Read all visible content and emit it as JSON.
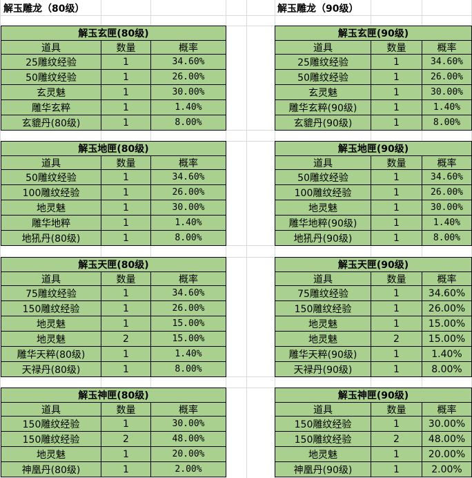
{
  "headings": [
    "解玉雕龙（80级）",
    "解玉雕龙（90级）"
  ],
  "columns": [
    {
      "tables": [
        {
          "title": "解玉玄匣(80级)",
          "header": [
            "道具",
            "数量",
            "概率"
          ],
          "rows": [
            [
              "25雕纹经验",
              1,
              "34.60%"
            ],
            [
              "50雕纹经验",
              1,
              "26.00%"
            ],
            [
              "玄灵魅",
              1,
              "30.00%"
            ],
            [
              "雕华玄粹",
              1,
              "1.40%"
            ],
            [
              "玄貔丹(80级)",
              1,
              "8.00%"
            ]
          ]
        },
        {
          "title": "解玉地匣(80级)",
          "header": [
            "道具",
            "数量",
            "概率"
          ],
          "rows": [
            [
              "50雕纹经验",
              1,
              "34.60%"
            ],
            [
              "100雕纹经验",
              1,
              "26.00%"
            ],
            [
              "地灵魅",
              1,
              "30.00%"
            ],
            [
              "雕华地粹",
              1,
              "1.40%"
            ],
            [
              "地犼丹(80级)",
              1,
              "8.00%"
            ]
          ]
        },
        {
          "title": "解玉天匣(80级)",
          "header": [
            "道具",
            "数量",
            "概率"
          ],
          "rows": [
            [
              "75雕纹经验",
              1,
              "34.60%"
            ],
            [
              "150雕纹经验",
              1,
              "26.00%"
            ],
            [
              "地灵魅",
              1,
              "15.00%"
            ],
            [
              "地灵魅",
              2,
              "15.00%"
            ],
            [
              "雕华天粹(80级)",
              1,
              "1.40%"
            ],
            [
              "天禄丹(80级)",
              1,
              "8.00%"
            ]
          ]
        },
        {
          "title": "解玉神匣(80级)",
          "header": [
            "道具",
            "数量",
            "概率"
          ],
          "rows": [
            [
              "150雕纹经验",
              1,
              "30.00%"
            ],
            [
              "150雕纹经验",
              2,
              "48.00%"
            ],
            [
              "地灵魅",
              1,
              "20.00%"
            ],
            [
              "神凰丹(80级)",
              1,
              "2.00%"
            ]
          ]
        }
      ]
    },
    {
      "tables": [
        {
          "title": "解玉玄匣(90级)",
          "header": [
            "道具",
            "数量",
            "概率"
          ],
          "rows": [
            [
              "25雕纹经验",
              1,
              "34.60%"
            ],
            [
              "50雕纹经验",
              1,
              "26.00%"
            ],
            [
              "玄灵魅",
              1,
              "30.00%"
            ],
            [
              "雕华玄粹(90级)",
              1,
              "1.40%"
            ],
            [
              "玄貔丹(90级)",
              1,
              "8.00%"
            ]
          ]
        },
        {
          "title": "解玉地匣(90级)",
          "header": [
            "道具",
            "数量",
            "概率"
          ],
          "rows": [
            [
              "50雕纹经验",
              1,
              "34.60%"
            ],
            [
              "100雕纹经验",
              1,
              "26.00%"
            ],
            [
              "地灵魅",
              1,
              "30.00%"
            ],
            [
              "雕华地粹(90级)",
              1,
              "1.40%"
            ],
            [
              "地犼丹(90级)",
              1,
              "8.00%"
            ]
          ]
        },
        {
          "title": "解玉天匣(90级)",
          "header": [
            "道具",
            "数量",
            "概率"
          ],
          "rows": [
            [
              "75雕纹经验",
              1,
              "34.60%"
            ],
            [
              "150雕纹经验",
              1,
              "26.00%"
            ],
            [
              "地灵魅",
              1,
              "15.00%"
            ],
            [
              "地灵魅",
              2,
              "15.00%"
            ],
            [
              "雕华天粹(90级)",
              1,
              "1.40%"
            ],
            [
              "天禄丹(90级)",
              1,
              "8.00%"
            ]
          ]
        },
        {
          "title": "解玉神匣(90级)",
          "header": [
            "道具",
            "数量",
            "概率"
          ],
          "rows": [
            [
              "150雕纹经验",
              1,
              "30.00%"
            ],
            [
              "150雕纹经验",
              2,
              "48.00%"
            ],
            [
              "地灵魅",
              1,
              "20.00%"
            ],
            [
              "神凰丹(90级)",
              1,
              "2.00%"
            ]
          ]
        }
      ]
    }
  ]
}
